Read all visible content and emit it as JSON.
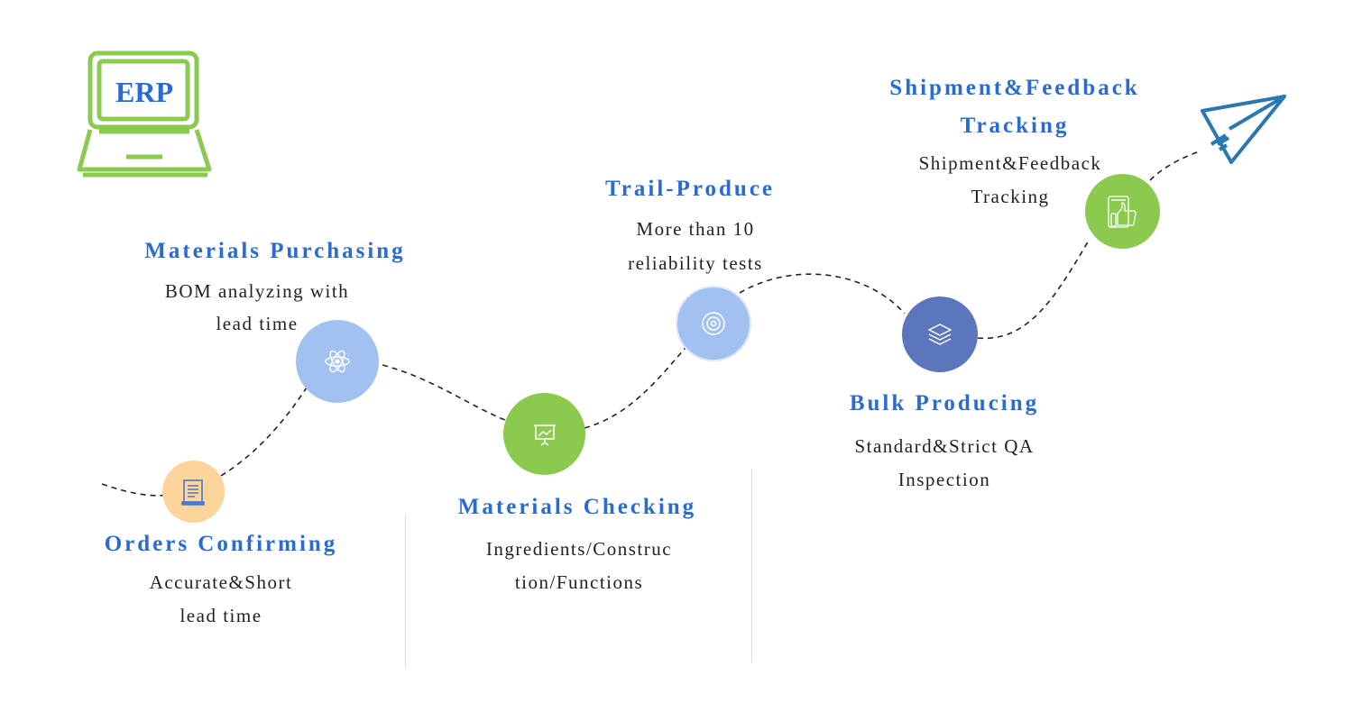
{
  "logo": {
    "text": "ERP",
    "color": "#8cc94f",
    "text_color": "#2a6bd1"
  },
  "colors": {
    "heading": "#2a6bd1",
    "green": "#8cc94f",
    "light_blue": "#a3c1f0",
    "dark_blue": "#5b76bd",
    "orange": "#fdd49a",
    "plane": "#2a78b0"
  },
  "steps": [
    {
      "title": "Orders Confirming",
      "desc1": "Accurate&Short",
      "desc2": "lead time",
      "icon": "document-icon"
    },
    {
      "title": "Materials Purchasing",
      "desc1": "BOM analyzing with",
      "desc2": "lead time",
      "icon": "atom-icon"
    },
    {
      "title": "Materials Checking",
      "desc1": "Ingredients/Construc",
      "desc2": "tion/Functions",
      "icon": "presentation-icon"
    },
    {
      "title": "Trail-Produce",
      "desc1": "More than 10",
      "desc2": "reliability tests",
      "icon": "target-icon"
    },
    {
      "title": "Bulk Producing",
      "desc1": "Standard&Strict QA",
      "desc2": "Inspection",
      "icon": "layers-icon"
    },
    {
      "title1": "Shipment&Feedback",
      "title2": "Tracking",
      "desc1": "Shipment&Feedback",
      "desc2": "Tracking",
      "icon": "thumbs-up-icon"
    }
  ]
}
